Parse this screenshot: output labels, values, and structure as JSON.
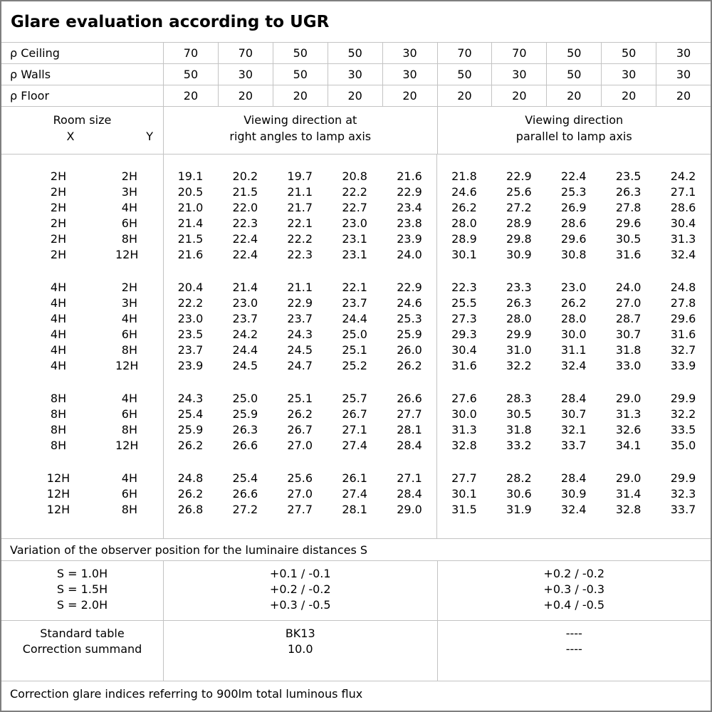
{
  "title": "Glare evaluation according to UGR",
  "colors": {
    "background": "#ffffff",
    "text": "#000000",
    "grid_line": "#c3c3c3",
    "outer_border": "#7f7f7f"
  },
  "reflectance": {
    "rows": [
      {
        "label": "ρ Ceiling",
        "values": [
          "70",
          "70",
          "50",
          "50",
          "30",
          "70",
          "70",
          "50",
          "50",
          "30"
        ]
      },
      {
        "label": "ρ Walls",
        "values": [
          "50",
          "30",
          "50",
          "30",
          "30",
          "50",
          "30",
          "50",
          "30",
          "30"
        ]
      },
      {
        "label": "ρ Floor",
        "values": [
          "20",
          "20",
          "20",
          "20",
          "20",
          "20",
          "20",
          "20",
          "20",
          "20"
        ]
      }
    ]
  },
  "header": {
    "room_size_label": "Room size",
    "x_label": "X",
    "y_label": "Y",
    "right_angles_line1": "Viewing direction at",
    "right_angles_line2": "right angles to lamp axis",
    "parallel_line1": "Viewing direction",
    "parallel_line2": "parallel to lamp axis"
  },
  "ugr_groups": [
    {
      "rows": [
        {
          "x": "2H",
          "y": "2H",
          "values": [
            "19.1",
            "20.2",
            "19.7",
            "20.8",
            "21.6",
            "21.8",
            "22.9",
            "22.4",
            "23.5",
            "24.2"
          ]
        },
        {
          "x": "2H",
          "y": "3H",
          "values": [
            "20.5",
            "21.5",
            "21.1",
            "22.2",
            "22.9",
            "24.6",
            "25.6",
            "25.3",
            "26.3",
            "27.1"
          ]
        },
        {
          "x": "2H",
          "y": "4H",
          "values": [
            "21.0",
            "22.0",
            "21.7",
            "22.7",
            "23.4",
            "26.2",
            "27.2",
            "26.9",
            "27.8",
            "28.6"
          ]
        },
        {
          "x": "2H",
          "y": "6H",
          "values": [
            "21.4",
            "22.3",
            "22.1",
            "23.0",
            "23.8",
            "28.0",
            "28.9",
            "28.6",
            "29.6",
            "30.4"
          ]
        },
        {
          "x": "2H",
          "y": "8H",
          "values": [
            "21.5",
            "22.4",
            "22.2",
            "23.1",
            "23.9",
            "28.9",
            "29.8",
            "29.6",
            "30.5",
            "31.3"
          ]
        },
        {
          "x": "2H",
          "y": "12H",
          "values": [
            "21.6",
            "22.4",
            "22.3",
            "23.1",
            "24.0",
            "30.1",
            "30.9",
            "30.8",
            "31.6",
            "32.4"
          ]
        }
      ]
    },
    {
      "rows": [
        {
          "x": "4H",
          "y": "2H",
          "values": [
            "20.4",
            "21.4",
            "21.1",
            "22.1",
            "22.9",
            "22.3",
            "23.3",
            "23.0",
            "24.0",
            "24.8"
          ]
        },
        {
          "x": "4H",
          "y": "3H",
          "values": [
            "22.2",
            "23.0",
            "22.9",
            "23.7",
            "24.6",
            "25.5",
            "26.3",
            "26.2",
            "27.0",
            "27.8"
          ]
        },
        {
          "x": "4H",
          "y": "4H",
          "values": [
            "23.0",
            "23.7",
            "23.7",
            "24.4",
            "25.3",
            "27.3",
            "28.0",
            "28.0",
            "28.7",
            "29.6"
          ]
        },
        {
          "x": "4H",
          "y": "6H",
          "values": [
            "23.5",
            "24.2",
            "24.3",
            "25.0",
            "25.9",
            "29.3",
            "29.9",
            "30.0",
            "30.7",
            "31.6"
          ]
        },
        {
          "x": "4H",
          "y": "8H",
          "values": [
            "23.7",
            "24.4",
            "24.5",
            "25.1",
            "26.0",
            "30.4",
            "31.0",
            "31.1",
            "31.8",
            "32.7"
          ]
        },
        {
          "x": "4H",
          "y": "12H",
          "values": [
            "23.9",
            "24.5",
            "24.7",
            "25.2",
            "26.2",
            "31.6",
            "32.2",
            "32.4",
            "33.0",
            "33.9"
          ]
        }
      ]
    },
    {
      "rows": [
        {
          "x": "8H",
          "y": "4H",
          "values": [
            "24.3",
            "25.0",
            "25.1",
            "25.7",
            "26.6",
            "27.6",
            "28.3",
            "28.4",
            "29.0",
            "29.9"
          ]
        },
        {
          "x": "8H",
          "y": "6H",
          "values": [
            "25.4",
            "25.9",
            "26.2",
            "26.7",
            "27.7",
            "30.0",
            "30.5",
            "30.7",
            "31.3",
            "32.2"
          ]
        },
        {
          "x": "8H",
          "y": "8H",
          "values": [
            "25.9",
            "26.3",
            "26.7",
            "27.1",
            "28.1",
            "31.3",
            "31.8",
            "32.1",
            "32.6",
            "33.5"
          ]
        },
        {
          "x": "8H",
          "y": "12H",
          "values": [
            "26.2",
            "26.6",
            "27.0",
            "27.4",
            "28.4",
            "32.8",
            "33.2",
            "33.7",
            "34.1",
            "35.0"
          ]
        }
      ]
    },
    {
      "rows": [
        {
          "x": "12H",
          "y": "4H",
          "values": [
            "24.8",
            "25.4",
            "25.6",
            "26.1",
            "27.1",
            "27.7",
            "28.2",
            "28.4",
            "29.0",
            "29.9"
          ]
        },
        {
          "x": "12H",
          "y": "6H",
          "values": [
            "26.2",
            "26.6",
            "27.0",
            "27.4",
            "28.4",
            "30.1",
            "30.6",
            "30.9",
            "31.4",
            "32.3"
          ]
        },
        {
          "x": "12H",
          "y": "8H",
          "values": [
            "26.8",
            "27.2",
            "27.7",
            "28.1",
            "29.0",
            "31.5",
            "31.9",
            "32.4",
            "32.8",
            "33.7"
          ]
        }
      ]
    }
  ],
  "variation": {
    "note": "Variation of the observer position for the luminaire distances S",
    "rows": [
      {
        "label": "S = 1.0H",
        "right_angles": "+0.1 / -0.1",
        "parallel": "+0.2 / -0.2"
      },
      {
        "label": "S = 1.5H",
        "right_angles": "+0.2 / -0.2",
        "parallel": "+0.3 / -0.3"
      },
      {
        "label": "S = 2.0H",
        "right_angles": "+0.3 / -0.5",
        "parallel": "+0.4 / -0.5"
      }
    ]
  },
  "summary": {
    "rows": [
      {
        "label": "Standard table",
        "right_angles": "BK13",
        "parallel": "----"
      },
      {
        "label": "Correction summand",
        "right_angles": "10.0",
        "parallel": "----"
      }
    ]
  },
  "footer_note": "Correction glare indices referring to 900lm total luminous flux"
}
